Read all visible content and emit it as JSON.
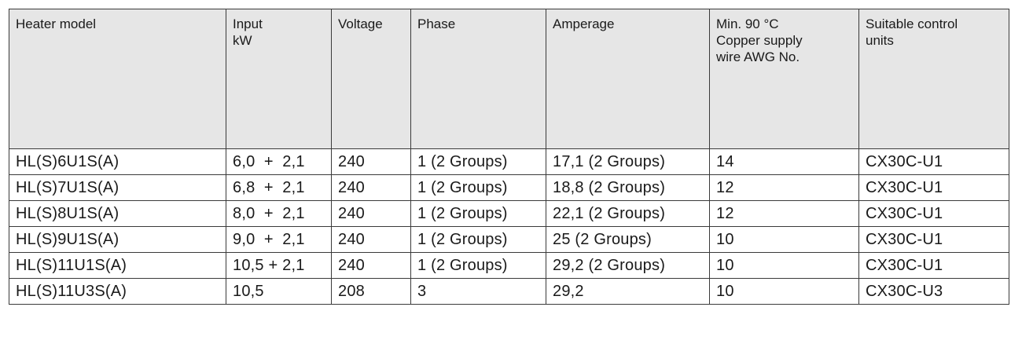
{
  "table": {
    "headers": [
      [
        "Heater model"
      ],
      [
        "Input",
        "kW"
      ],
      [
        "Voltage"
      ],
      [
        "Phase"
      ],
      [
        "Amperage"
      ],
      [
        "Min. 90 °C",
        "Copper supply",
        "wire AWG No."
      ],
      [
        "Suitable control",
        "units"
      ]
    ],
    "rows": [
      [
        "HL(S)6U1S(A)",
        "6,0  +  2,1",
        "240",
        "1 (2 Groups)",
        "17,1 (2 Groups)",
        "14",
        "CX30C-U1"
      ],
      [
        "HL(S)7U1S(A)",
        "6,8  +  2,1",
        "240",
        "1 (2 Groups)",
        "18,8 (2 Groups)",
        "12",
        "CX30C-U1"
      ],
      [
        "HL(S)8U1S(A)",
        "8,0  +  2,1",
        "240",
        "1 (2 Groups)",
        "22,1 (2 Groups)",
        "12",
        "CX30C-U1"
      ],
      [
        "HL(S)9U1S(A)",
        "9,0  +  2,1",
        "240",
        "1 (2 Groups)",
        "25 (2 Groups)",
        "10",
        "CX30C-U1"
      ],
      [
        "HL(S)11U1S(A)",
        "10,5 + 2,1",
        "240",
        "1 (2 Groups)",
        "29,2 (2 Groups)",
        "10",
        "CX30C-U1"
      ],
      [
        "HL(S)11U3S(A)",
        "10,5",
        "208",
        "3",
        "29,2",
        "10",
        "CX30C-U3"
      ]
    ]
  }
}
